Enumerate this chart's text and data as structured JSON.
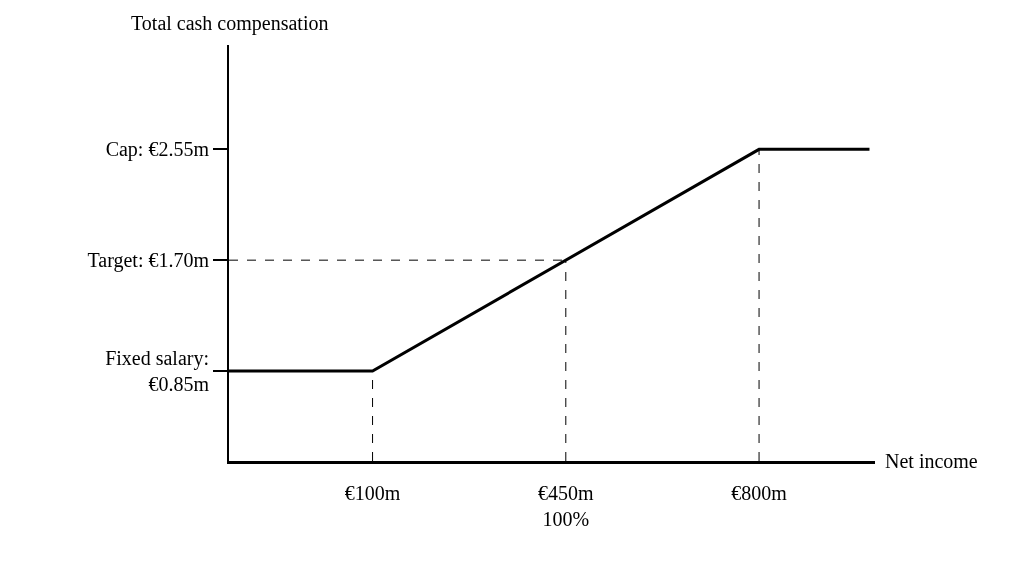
{
  "chart_data": {
    "type": "line",
    "xlabel": "Net income",
    "ylabel": "Total cash compensation",
    "xlim": [
      -160,
      1010
    ],
    "ylim": [
      0.16,
      3.35
    ],
    "xticks": [
      {
        "value": 100,
        "label": "€100m"
      },
      {
        "value": 450,
        "label": "€450m\n100%"
      },
      {
        "value": 800,
        "label": "€800m"
      }
    ],
    "yticks": [
      {
        "value": 0.85,
        "label": "Fixed salary:\n€0.85m"
      },
      {
        "value": 1.7,
        "label": "Target: €1.70m"
      },
      {
        "value": 2.55,
        "label": "Cap: €2.55m"
      }
    ],
    "marker": "none",
    "series": [
      {
        "color": "#000000",
        "line_style": "solid",
        "x": [
          -160,
          100,
          800,
          1000
        ],
        "values": [
          0.85,
          0.85,
          2.55,
          2.55
        ]
      },
      {
        "color": "#000000",
        "line_style": "dashed",
        "x": [
          100,
          100
        ],
        "values": [
          0.16,
          0.85
        ]
      },
      {
        "color": "#000000",
        "line_style": "dashed",
        "x": [
          450,
          450
        ],
        "values": [
          0.16,
          1.7
        ]
      },
      {
        "color": "#000000",
        "line_style": "dashed",
        "x": [
          -160,
          450
        ],
        "values": [
          1.7,
          1.7
        ]
      },
      {
        "color": "#000000",
        "line_style": "dashed",
        "x": [
          800,
          800
        ],
        "values": [
          0.16,
          2.55
        ]
      }
    ]
  }
}
